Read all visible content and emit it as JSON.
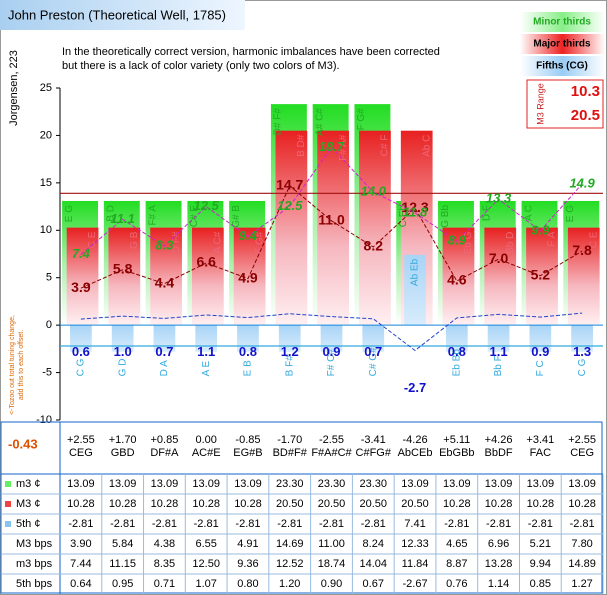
{
  "chart_data": {
    "type": "bar",
    "title": "John Preston (Theoretical Well, 1785)",
    "annotation": [
      "In the theoretically correct version, harmonic imbalances have been corrected",
      "but there is a lack of color variety (only two colors of M3)."
    ],
    "ylabel": "Jorgensen, 223",
    "side_note": [
      "<-Tozoo out total tuning change,",
      "add this to each offset."
    ],
    "total_offset": "-0.43",
    "ylim": [
      -10,
      25
    ],
    "yticks": [
      -10,
      -5,
      0,
      5,
      10,
      15,
      20,
      25
    ],
    "grid": false,
    "categories": [
      "CEG",
      "GBD",
      "DF#A",
      "AC#E",
      "EG#B",
      "BD#F#",
      "F#A#C#",
      "C#FG#",
      "AbCEb",
      "EbGBb",
      "BbDF",
      "FAC",
      "CEG"
    ],
    "offsets": [
      "+2.55",
      "+1.70",
      "+0.85",
      "0.00",
      "-0.85",
      "-1.70",
      "-2.55",
      "-3.41",
      "-4.26",
      "+5.11",
      "+4.26",
      "+3.41",
      "+2.55"
    ],
    "series": [
      {
        "name": "Minor thirds",
        "color": "#22dd22",
        "values": [
          13.09,
          13.09,
          13.09,
          13.09,
          13.09,
          23.3,
          23.3,
          23.3,
          13.09,
          13.09,
          13.09,
          13.09,
          13.09
        ],
        "notes": [
          "E G",
          "B D",
          "F# A",
          "C# E",
          "G# B",
          "D# F#",
          "A# C#",
          "F G#",
          "C Eb",
          "G Bb",
          "D F",
          "A C",
          "E G"
        ]
      },
      {
        "name": "Major thirds",
        "color": "#e82020",
        "values": [
          10.28,
          10.28,
          10.28,
          10.28,
          10.28,
          20.5,
          20.5,
          20.5,
          20.5,
          10.28,
          10.28,
          10.28,
          10.28
        ],
        "notes": [
          "C E",
          "G B",
          "D F#",
          "A C#",
          "E G#",
          "B D#",
          "F# A#",
          "C# F",
          "Ab C",
          "Eb G",
          "Bb D",
          "F A",
          "C E"
        ]
      },
      {
        "name": "Fifths (CG)",
        "color": "#88c4f0",
        "values": [
          -2.81,
          -2.81,
          -2.81,
          -2.81,
          -2.81,
          -2.81,
          -2.81,
          -2.81,
          7.41,
          -2.81,
          -2.81,
          -2.81,
          -2.81
        ],
        "notes": [
          "C G",
          "G D",
          "D A",
          "A E",
          "E B",
          "B F#",
          "F# C#",
          "C# G#",
          "Ab Eb",
          "Eb Bb",
          "Bb F",
          "F C",
          "C G"
        ]
      }
    ],
    "line_series": [
      {
        "color": "#8b0000",
        "label_color": "#8b0000",
        "values": [
          3.9,
          5.84,
          4.38,
          6.55,
          4.91,
          14.69,
          11.0,
          8.24,
          12.33,
          4.65,
          6.96,
          5.21,
          7.8
        ],
        "value_labels": [
          "3.9",
          "5.8",
          "4.4",
          "6.6",
          "4.9",
          "14.7",
          "11.0",
          "8.2",
          "12.3",
          "4.6",
          "7.0",
          "5.2",
          "7.8"
        ]
      },
      {
        "color": "#cc22cc",
        "label_color": "#22aa22",
        "values": [
          7.44,
          11.15,
          8.35,
          12.5,
          9.36,
          12.52,
          18.74,
          14.04,
          11.84,
          8.87,
          13.28,
          9.94,
          14.89
        ],
        "value_labels": [
          "7.4",
          "11.1",
          "8.3",
          "12.5",
          "9.4",
          "12.5",
          "18.7",
          "14.0",
          "11.8",
          "8.9",
          "13.3",
          "9.9",
          "14.9"
        ]
      },
      {
        "color": "#2244cc",
        "label_color": "#1111cc",
        "values": [
          0.64,
          0.95,
          0.71,
          1.07,
          0.8,
          1.2,
          0.9,
          0.67,
          -2.67,
          0.76,
          1.14,
          0.85,
          1.27
        ],
        "value_labels": [
          "0.6",
          "1.0",
          "0.7",
          "1.1",
          "0.8",
          "1.2",
          "0.9",
          "0.7",
          "-2.7",
          "0.8",
          "1.1",
          "0.9",
          "1.3"
        ]
      }
    ],
    "ref_lines": [
      {
        "value": 13.9,
        "color": "#a01010"
      },
      {
        "value": -2.2,
        "color": "#33aadd"
      }
    ],
    "m3_range": {
      "label": "M3 Range",
      "values": [
        10.3,
        20.5
      ]
    },
    "table": {
      "rows": [
        {
          "label": "m3 ¢",
          "color": "#66ee66",
          "cells": [
            "13.09",
            "13.09",
            "13.09",
            "13.09",
            "13.09",
            "23.30",
            "23.30",
            "23.30",
            "13.09",
            "13.09",
            "13.09",
            "13.09",
            "13.09"
          ]
        },
        {
          "label": "M3 ¢",
          "color": "#ee4444",
          "cells": [
            "10.28",
            "10.28",
            "10.28",
            "10.28",
            "10.28",
            "20.50",
            "20.50",
            "20.50",
            "20.50",
            "10.28",
            "10.28",
            "10.28",
            "10.28"
          ]
        },
        {
          "label": "5th ¢",
          "color": "#88c4f0",
          "cells": [
            "-2.81",
            "-2.81",
            "-2.81",
            "-2.81",
            "-2.81",
            "-2.81",
            "-2.81",
            "-2.81",
            "7.41",
            "-2.81",
            "-2.81",
            "-2.81",
            "-2.81"
          ]
        },
        {
          "label": "M3 bps",
          "cells": [
            "3.90",
            "5.84",
            "4.38",
            "6.55",
            "4.91",
            "14.69",
            "11.00",
            "8.24",
            "12.33",
            "4.65",
            "6.96",
            "5.21",
            "7.80"
          ]
        },
        {
          "label": "m3 bps",
          "cells": [
            "7.44",
            "11.15",
            "8.35",
            "12.50",
            "9.36",
            "12.52",
            "18.74",
            "14.04",
            "11.84",
            "8.87",
            "13.28",
            "9.94",
            "14.89"
          ]
        },
        {
          "label": "5th bps",
          "cells": [
            "0.64",
            "0.95",
            "0.71",
            "1.07",
            "0.80",
            "1.20",
            "0.90",
            "0.67",
            "-2.67",
            "0.76",
            "1.14",
            "0.85",
            "1.27"
          ]
        }
      ]
    }
  }
}
